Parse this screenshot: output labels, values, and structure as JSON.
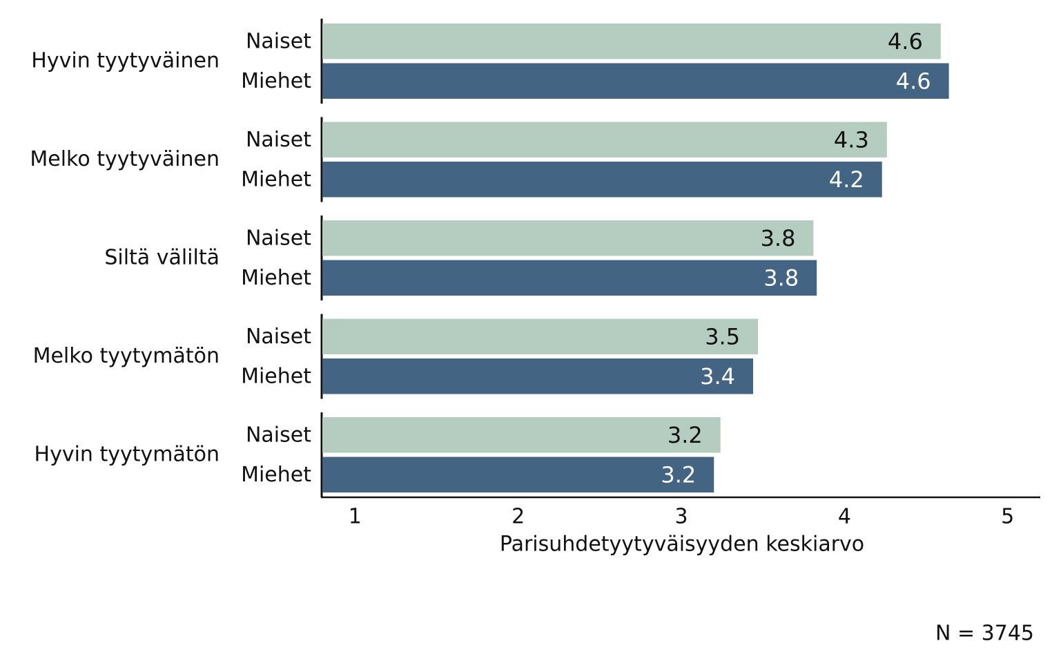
{
  "chart_data": {
    "type": "barh",
    "categories": [
      "Hyvin tyytyväinen",
      "Melko tyytyväinen",
      "Siltä väliltä",
      "Melko tyytymätön",
      "Hyvin tyytymätön"
    ],
    "series": [
      {
        "name": "Naiset",
        "color": "#b5cdc0",
        "label_color": "#111111",
        "values": [
          4.59,
          4.26,
          3.81,
          3.47,
          3.24
        ],
        "value_labels": [
          "4.6",
          "4.3",
          "3.8",
          "3.5",
          "3.2"
        ]
      },
      {
        "name": "Miehet",
        "color": "#436583",
        "label_color": "#ffffff",
        "values": [
          4.64,
          4.23,
          3.83,
          3.44,
          3.2
        ],
        "value_labels": [
          "4.6",
          "4.2",
          "3.8",
          "3.4",
          "3.2"
        ]
      }
    ],
    "xlim": [
      0.8,
      5.2
    ],
    "xticks": [
      1,
      2,
      3,
      4,
      5
    ],
    "xlabel": "Parisuhdetyytyväisyyden keskiarvo",
    "annotation": "N = 3745"
  }
}
